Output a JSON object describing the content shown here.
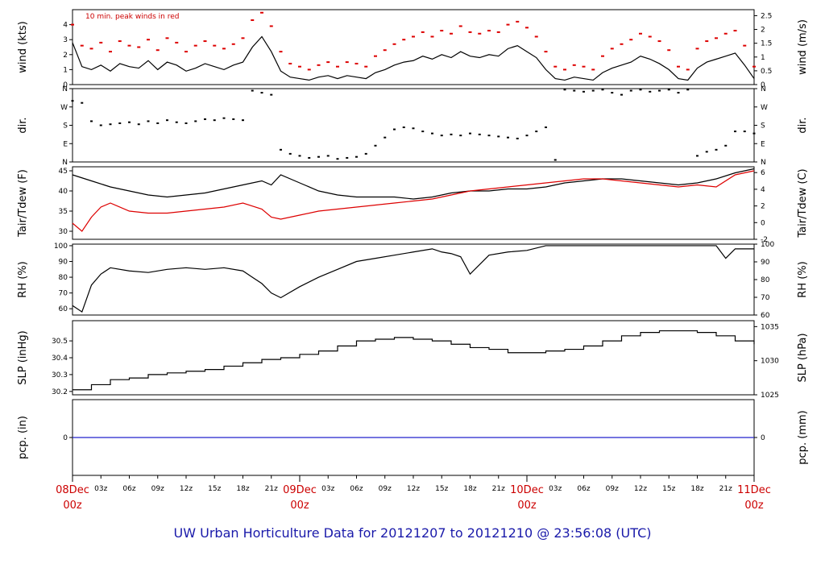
{
  "chart_data": {
    "type": "line",
    "title": "UW Urban Horticulture Data for 20121207  to  20121210 @ 23:56:08  (UTC)",
    "x_axis": {
      "hour_ticks": [
        "03z",
        "06z",
        "09z",
        "12z",
        "15z",
        "18z",
        "21z",
        "03z",
        "06z",
        "09z",
        "12z",
        "15z",
        "18z",
        "21z",
        "03z",
        "06z",
        "09z",
        "12z",
        "15z",
        "18z",
        "21z"
      ],
      "day_ticks": [
        {
          "date": "08Dec",
          "hour": "00z"
        },
        {
          "date": "09Dec",
          "hour": "00z"
        },
        {
          "date": "10Dec",
          "hour": "00z"
        },
        {
          "date": "11Dec",
          "hour": "00z"
        }
      ],
      "range_hours": [
        0,
        72
      ]
    },
    "panels": [
      {
        "id": "wind",
        "left_label": "wind (kts)",
        "right_label": "wind (m/s)",
        "left_range": [
          0,
          5
        ],
        "left_ticks": [
          "0",
          "1",
          "2",
          "3",
          "4"
        ],
        "right_ticks": [
          "0",
          "0.5",
          "1",
          "1.5",
          "2",
          "2.5"
        ],
        "annotation": "10 min. peak winds in red",
        "series": [
          {
            "color": "#000000",
            "x": [
              0,
              1,
              2,
              3,
              4,
              5,
              6,
              7,
              8,
              9,
              10,
              11,
              12,
              13,
              14,
              15,
              16,
              17,
              18,
              19,
              20,
              21,
              22,
              23,
              24,
              25,
              26,
              27,
              28,
              29,
              30,
              31,
              32,
              33,
              34,
              35,
              36,
              37,
              38,
              39,
              40,
              41,
              42,
              43,
              44,
              45,
              46,
              47,
              48,
              49,
              50,
              51,
              52,
              53,
              54,
              55,
              56,
              57,
              58,
              59,
              60,
              61,
              62,
              63,
              64,
              65,
              66,
              67,
              68,
              69,
              70,
              71,
              72
            ],
            "y": [
              2.8,
              1.2,
              1.0,
              1.3,
              0.9,
              1.4,
              1.2,
              1.1,
              1.6,
              1.0,
              1.5,
              1.3,
              0.9,
              1.1,
              1.4,
              1.2,
              1.0,
              1.3,
              1.5,
              2.5,
              3.2,
              2.2,
              0.9,
              0.5,
              0.4,
              0.3,
              0.5,
              0.6,
              0.4,
              0.6,
              0.5,
              0.4,
              0.8,
              1.0,
              1.3,
              1.5,
              1.6,
              1.9,
              1.7,
              2.0,
              1.8,
              2.2,
              1.9,
              1.8,
              2.0,
              1.9,
              2.4,
              2.6,
              2.2,
              1.8,
              1.0,
              0.4,
              0.3,
              0.5,
              0.4,
              0.3,
              0.8,
              1.1,
              1.3,
              1.5,
              1.9,
              1.7,
              1.4,
              1.0,
              0.4,
              0.3,
              1.1,
              1.5,
              1.7,
              1.9,
              2.1,
              1.3,
              0.4
            ]
          },
          {
            "color": "#dd0000",
            "name": "10 min. peak winds",
            "x": [
              0,
              1,
              2,
              3,
              4,
              5,
              6,
              7,
              8,
              9,
              10,
              11,
              12,
              13,
              14,
              15,
              16,
              17,
              18,
              19,
              20,
              21,
              22,
              23,
              24,
              25,
              26,
              27,
              28,
              29,
              30,
              31,
              32,
              33,
              34,
              35,
              36,
              37,
              38,
              39,
              40,
              41,
              42,
              43,
              44,
              45,
              46,
              47,
              48,
              49,
              50,
              51,
              52,
              53,
              54,
              55,
              56,
              57,
              58,
              59,
              60,
              61,
              62,
              63,
              64,
              65,
              66,
              67,
              68,
              69,
              70,
              71,
              72
            ],
            "y": [
              4.0,
              2.6,
              2.4,
              2.8,
              2.2,
              2.9,
              2.6,
              2.5,
              3.0,
              2.3,
              3.1,
              2.8,
              2.2,
              2.6,
              2.9,
              2.6,
              2.4,
              2.7,
              3.1,
              4.3,
              4.8,
              3.9,
              2.2,
              1.4,
              1.2,
              1.0,
              1.3,
              1.5,
              1.2,
              1.5,
              1.4,
              1.2,
              1.9,
              2.3,
              2.7,
              3.0,
              3.2,
              3.5,
              3.2,
              3.6,
              3.4,
              3.9,
              3.5,
              3.4,
              3.6,
              3.5,
              4.0,
              4.2,
              3.8,
              3.2,
              2.2,
              1.2,
              1.0,
              1.3,
              1.2,
              1.0,
              1.9,
              2.4,
              2.7,
              3.0,
              3.4,
              3.2,
              2.9,
              2.3,
              1.2,
              1.0,
              2.4,
              2.9,
              3.1,
              3.4,
              3.6,
              2.6,
              1.2
            ]
          }
        ]
      },
      {
        "id": "dir",
        "left_label": "dir.",
        "right_label": "dir.",
        "left_range": [
          0,
          360
        ],
        "left_ticks": [
          "N",
          "E",
          "S",
          "W",
          "N"
        ],
        "right_ticks": [
          "N",
          "E",
          "S",
          "W",
          "N"
        ],
        "series": [
          {
            "color": "#000000",
            "style": "dots",
            "x": [
              0,
              1,
              2,
              3,
              4,
              5,
              6,
              7,
              8,
              9,
              10,
              11,
              12,
              13,
              14,
              15,
              16,
              17,
              18,
              19,
              20,
              21,
              22,
              23,
              24,
              25,
              26,
              27,
              28,
              29,
              30,
              31,
              32,
              33,
              34,
              35,
              36,
              37,
              38,
              39,
              40,
              41,
              42,
              43,
              44,
              45,
              46,
              47,
              48,
              49,
              50,
              51,
              52,
              53,
              54,
              55,
              56,
              57,
              58,
              59,
              60,
              61,
              62,
              63,
              64,
              65,
              66,
              67,
              68,
              69,
              70,
              71,
              72
            ],
            "y": [
              300,
              290,
              200,
              180,
              185,
              190,
              195,
              185,
              200,
              190,
              205,
              195,
              190,
              200,
              210,
              205,
              215,
              210,
              205,
              350,
              340,
              330,
              60,
              40,
              30,
              20,
              25,
              30,
              15,
              20,
              25,
              40,
              80,
              120,
              160,
              170,
              165,
              150,
              140,
              130,
              135,
              130,
              140,
              135,
              130,
              125,
              120,
              115,
              130,
              150,
              170,
              10,
              355,
              350,
              345,
              350,
              355,
              340,
              330,
              350,
              355,
              345,
              350,
              355,
              340,
              355,
              30,
              50,
              60,
              80,
              150,
              150,
              140
            ]
          }
        ]
      },
      {
        "id": "temp",
        "left_label": "Tair/Tdew (F)",
        "right_label": "Tair/Tdew (C)",
        "left_range": [
          28,
          46
        ],
        "left_ticks": [
          "30",
          "35",
          "40",
          "45"
        ],
        "right_ticks": [
          "-2",
          "0",
          "2",
          "4",
          "6"
        ],
        "series": [
          {
            "name": "Tair",
            "color": "#000000",
            "x": [
              0,
              2,
              4,
              6,
              8,
              10,
              12,
              14,
              16,
              18,
              20,
              21,
              22,
              24,
              26,
              28,
              30,
              32,
              34,
              36,
              38,
              40,
              42,
              44,
              46,
              48,
              50,
              52,
              54,
              56,
              58,
              60,
              62,
              64,
              66,
              68,
              70,
              72
            ],
            "y": [
              44.0,
              42.5,
              41.0,
              40.0,
              39.0,
              38.5,
              39.0,
              39.5,
              40.5,
              41.5,
              42.5,
              41.5,
              44.0,
              42.0,
              40.0,
              39.0,
              38.5,
              38.5,
              38.5,
              38.0,
              38.5,
              39.5,
              40.0,
              40.0,
              40.5,
              40.5,
              41.0,
              42.0,
              42.5,
              43.0,
              43.0,
              42.5,
              42.0,
              41.5,
              42.0,
              43.0,
              44.5,
              45.5
            ]
          },
          {
            "name": "Tdew",
            "color": "#dd0000",
            "x": [
              0,
              1,
              2,
              3,
              4,
              6,
              8,
              10,
              12,
              14,
              16,
              18,
              20,
              21,
              22,
              24,
              26,
              28,
              30,
              32,
              34,
              36,
              38,
              40,
              42,
              44,
              46,
              48,
              50,
              52,
              54,
              56,
              58,
              60,
              62,
              64,
              66,
              68,
              70,
              72
            ],
            "y": [
              32.0,
              30.0,
              33.5,
              36.0,
              37.0,
              35.0,
              34.5,
              34.5,
              35.0,
              35.5,
              36.0,
              37.0,
              35.5,
              33.5,
              33.0,
              34.0,
              35.0,
              35.5,
              36.0,
              36.5,
              37.0,
              37.5,
              38.0,
              39.0,
              40.0,
              40.5,
              41.0,
              41.5,
              42.0,
              42.5,
              43.0,
              43.0,
              42.5,
              42.0,
              41.5,
              41.0,
              41.5,
              41.0,
              44.0,
              45.0
            ]
          }
        ]
      },
      {
        "id": "rh",
        "left_label": "RH (%)",
        "right_label": "RH (%)",
        "left_range": [
          56,
          101
        ],
        "left_ticks": [
          "60",
          "70",
          "80",
          "90",
          "100"
        ],
        "right_ticks": [
          "60",
          "70",
          "80",
          "90",
          "100"
        ],
        "series": [
          {
            "color": "#000000",
            "x": [
              0,
              1,
              2,
              3,
              4,
              6,
              8,
              10,
              12,
              14,
              16,
              18,
              19,
              20,
              21,
              22,
              24,
              26,
              28,
              30,
              32,
              34,
              36,
              38,
              39,
              40,
              41,
              42,
              44,
              46,
              48,
              50,
              52,
              54,
              56,
              58,
              60,
              62,
              64,
              66,
              68,
              69,
              70,
              72
            ],
            "y": [
              62,
              58,
              75,
              82,
              86,
              84,
              83,
              85,
              86,
              85,
              86,
              84,
              80,
              76,
              70,
              67,
              74,
              80,
              85,
              90,
              92,
              94,
              96,
              98,
              96,
              95,
              93,
              82,
              94,
              96,
              97,
              100,
              100,
              100,
              100,
              100,
              100,
              100,
              100,
              100,
              100,
              92,
              98,
              98
            ]
          }
        ]
      },
      {
        "id": "slp",
        "left_label": "SLP (inHg)",
        "right_label": "SLP (hPa)",
        "left_range": [
          30.18,
          30.62
        ],
        "left_ticks": [
          "30.2",
          "30.3",
          "30.4",
          "30.5"
        ],
        "right_ticks": [
          "1025",
          "1030",
          "1035"
        ],
        "series": [
          {
            "color": "#000000",
            "style": "step",
            "x": [
              0,
              2,
              4,
              6,
              8,
              10,
              12,
              14,
              16,
              18,
              20,
              22,
              24,
              26,
              28,
              30,
              32,
              34,
              36,
              38,
              40,
              42,
              44,
              46,
              48,
              50,
              52,
              54,
              56,
              58,
              60,
              62,
              64,
              66,
              68,
              70,
              72
            ],
            "y": [
              30.21,
              30.24,
              30.27,
              30.28,
              30.3,
              30.31,
              30.32,
              30.33,
              30.35,
              30.37,
              30.39,
              30.4,
              30.42,
              30.44,
              30.47,
              30.5,
              30.51,
              30.52,
              30.51,
              30.5,
              30.48,
              30.46,
              30.45,
              30.43,
              30.43,
              30.44,
              30.45,
              30.47,
              30.5,
              30.53,
              30.55,
              30.56,
              30.56,
              30.55,
              30.53,
              30.5,
              30.48
            ]
          }
        ]
      },
      {
        "id": "pcp",
        "left_label": "pcp. (in)",
        "right_label": "pcp. (mm)",
        "left_range": [
          -1,
          1
        ],
        "left_ticks": [
          "0"
        ],
        "right_ticks": [
          "0"
        ],
        "series": [
          {
            "color": "#2222cc",
            "x": [
              0,
              72
            ],
            "y": [
              0,
              0
            ]
          }
        ]
      }
    ]
  }
}
